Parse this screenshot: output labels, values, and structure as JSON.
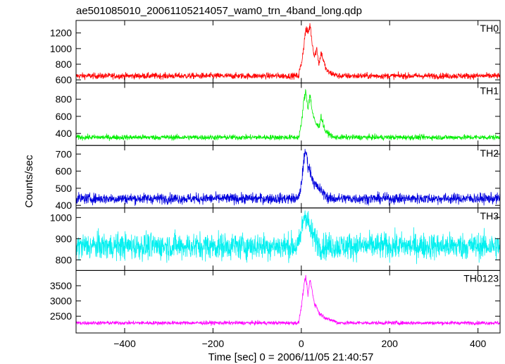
{
  "chart_data": {
    "type": "line",
    "title": "ae501085010_20061105214057_wam0_trn_4band_long.qdp",
    "xlabel": "Time [sec] 0 = 2006/11/05 21:40:57",
    "ylabel": "Counts/sec",
    "xlim": [
      -510,
      450
    ],
    "x_ticks": [
      -400,
      -200,
      0,
      200,
      400
    ],
    "grid": false,
    "panels": [
      {
        "name": "TH0",
        "color": "#ff0000",
        "ylim": [
          560,
          1360
        ],
        "y_ticks": [
          600,
          800,
          1000,
          1200
        ],
        "baseline": 650,
        "noise": 28,
        "burst": [
          [
            -5,
            700
          ],
          [
            0,
            800
          ],
          [
            5,
            1000
          ],
          [
            10,
            1250
          ],
          [
            15,
            1200
          ],
          [
            20,
            1300
          ],
          [
            25,
            1050
          ],
          [
            30,
            900
          ],
          [
            35,
            1000
          ],
          [
            40,
            800
          ],
          [
            45,
            950
          ],
          [
            50,
            850
          ],
          [
            55,
            750
          ],
          [
            60,
            700
          ],
          [
            80,
            660
          ]
        ]
      },
      {
        "name": "TH1",
        "color": "#00ee00",
        "ylim": [
          260,
          990
        ],
        "y_ticks": [
          400,
          600,
          800
        ],
        "baseline": 355,
        "noise": 22,
        "burst": [
          [
            -5,
            380
          ],
          [
            0,
            500
          ],
          [
            5,
            750
          ],
          [
            10,
            900
          ],
          [
            15,
            700
          ],
          [
            20,
            850
          ],
          [
            25,
            650
          ],
          [
            30,
            550
          ],
          [
            35,
            500
          ],
          [
            40,
            480
          ],
          [
            45,
            600
          ],
          [
            50,
            500
          ],
          [
            55,
            420
          ],
          [
            70,
            370
          ]
        ]
      },
      {
        "name": "TH2",
        "color": "#0000dd",
        "ylim": [
          385,
          750
        ],
        "y_ticks": [
          400,
          500,
          600,
          700
        ],
        "baseline": 440,
        "noise": 22,
        "burst": [
          [
            -5,
            460
          ],
          [
            0,
            520
          ],
          [
            5,
            650
          ],
          [
            10,
            720
          ],
          [
            15,
            640
          ],
          [
            20,
            600
          ],
          [
            25,
            560
          ],
          [
            30,
            520
          ],
          [
            40,
            500
          ],
          [
            50,
            470
          ],
          [
            60,
            450
          ]
        ]
      },
      {
        "name": "TH3",
        "color": "#00f0f0",
        "ylim": [
          750,
          1045
        ],
        "y_ticks": [
          800,
          900,
          1000
        ],
        "baseline": 865,
        "noise": 45,
        "burst": [
          [
            -5,
            880
          ],
          [
            0,
            930
          ],
          [
            5,
            1000
          ],
          [
            10,
            1020
          ],
          [
            15,
            980
          ],
          [
            20,
            940
          ],
          [
            30,
            900
          ],
          [
            40,
            880
          ]
        ]
      },
      {
        "name": "TH0123",
        "color": "#ff00ff",
        "ylim": [
          1950,
          4000
        ],
        "y_ticks": [
          2500,
          3000,
          3500
        ],
        "baseline": 2280,
        "noise": 45,
        "burst": [
          [
            -5,
            2400
          ],
          [
            0,
            2800
          ],
          [
            5,
            3400
          ],
          [
            10,
            3800
          ],
          [
            15,
            3200
          ],
          [
            20,
            3700
          ],
          [
            25,
            3300
          ],
          [
            30,
            2900
          ],
          [
            35,
            2800
          ],
          [
            40,
            2600
          ],
          [
            50,
            2500
          ],
          [
            60,
            2400
          ],
          [
            80,
            2320
          ]
        ]
      }
    ]
  }
}
